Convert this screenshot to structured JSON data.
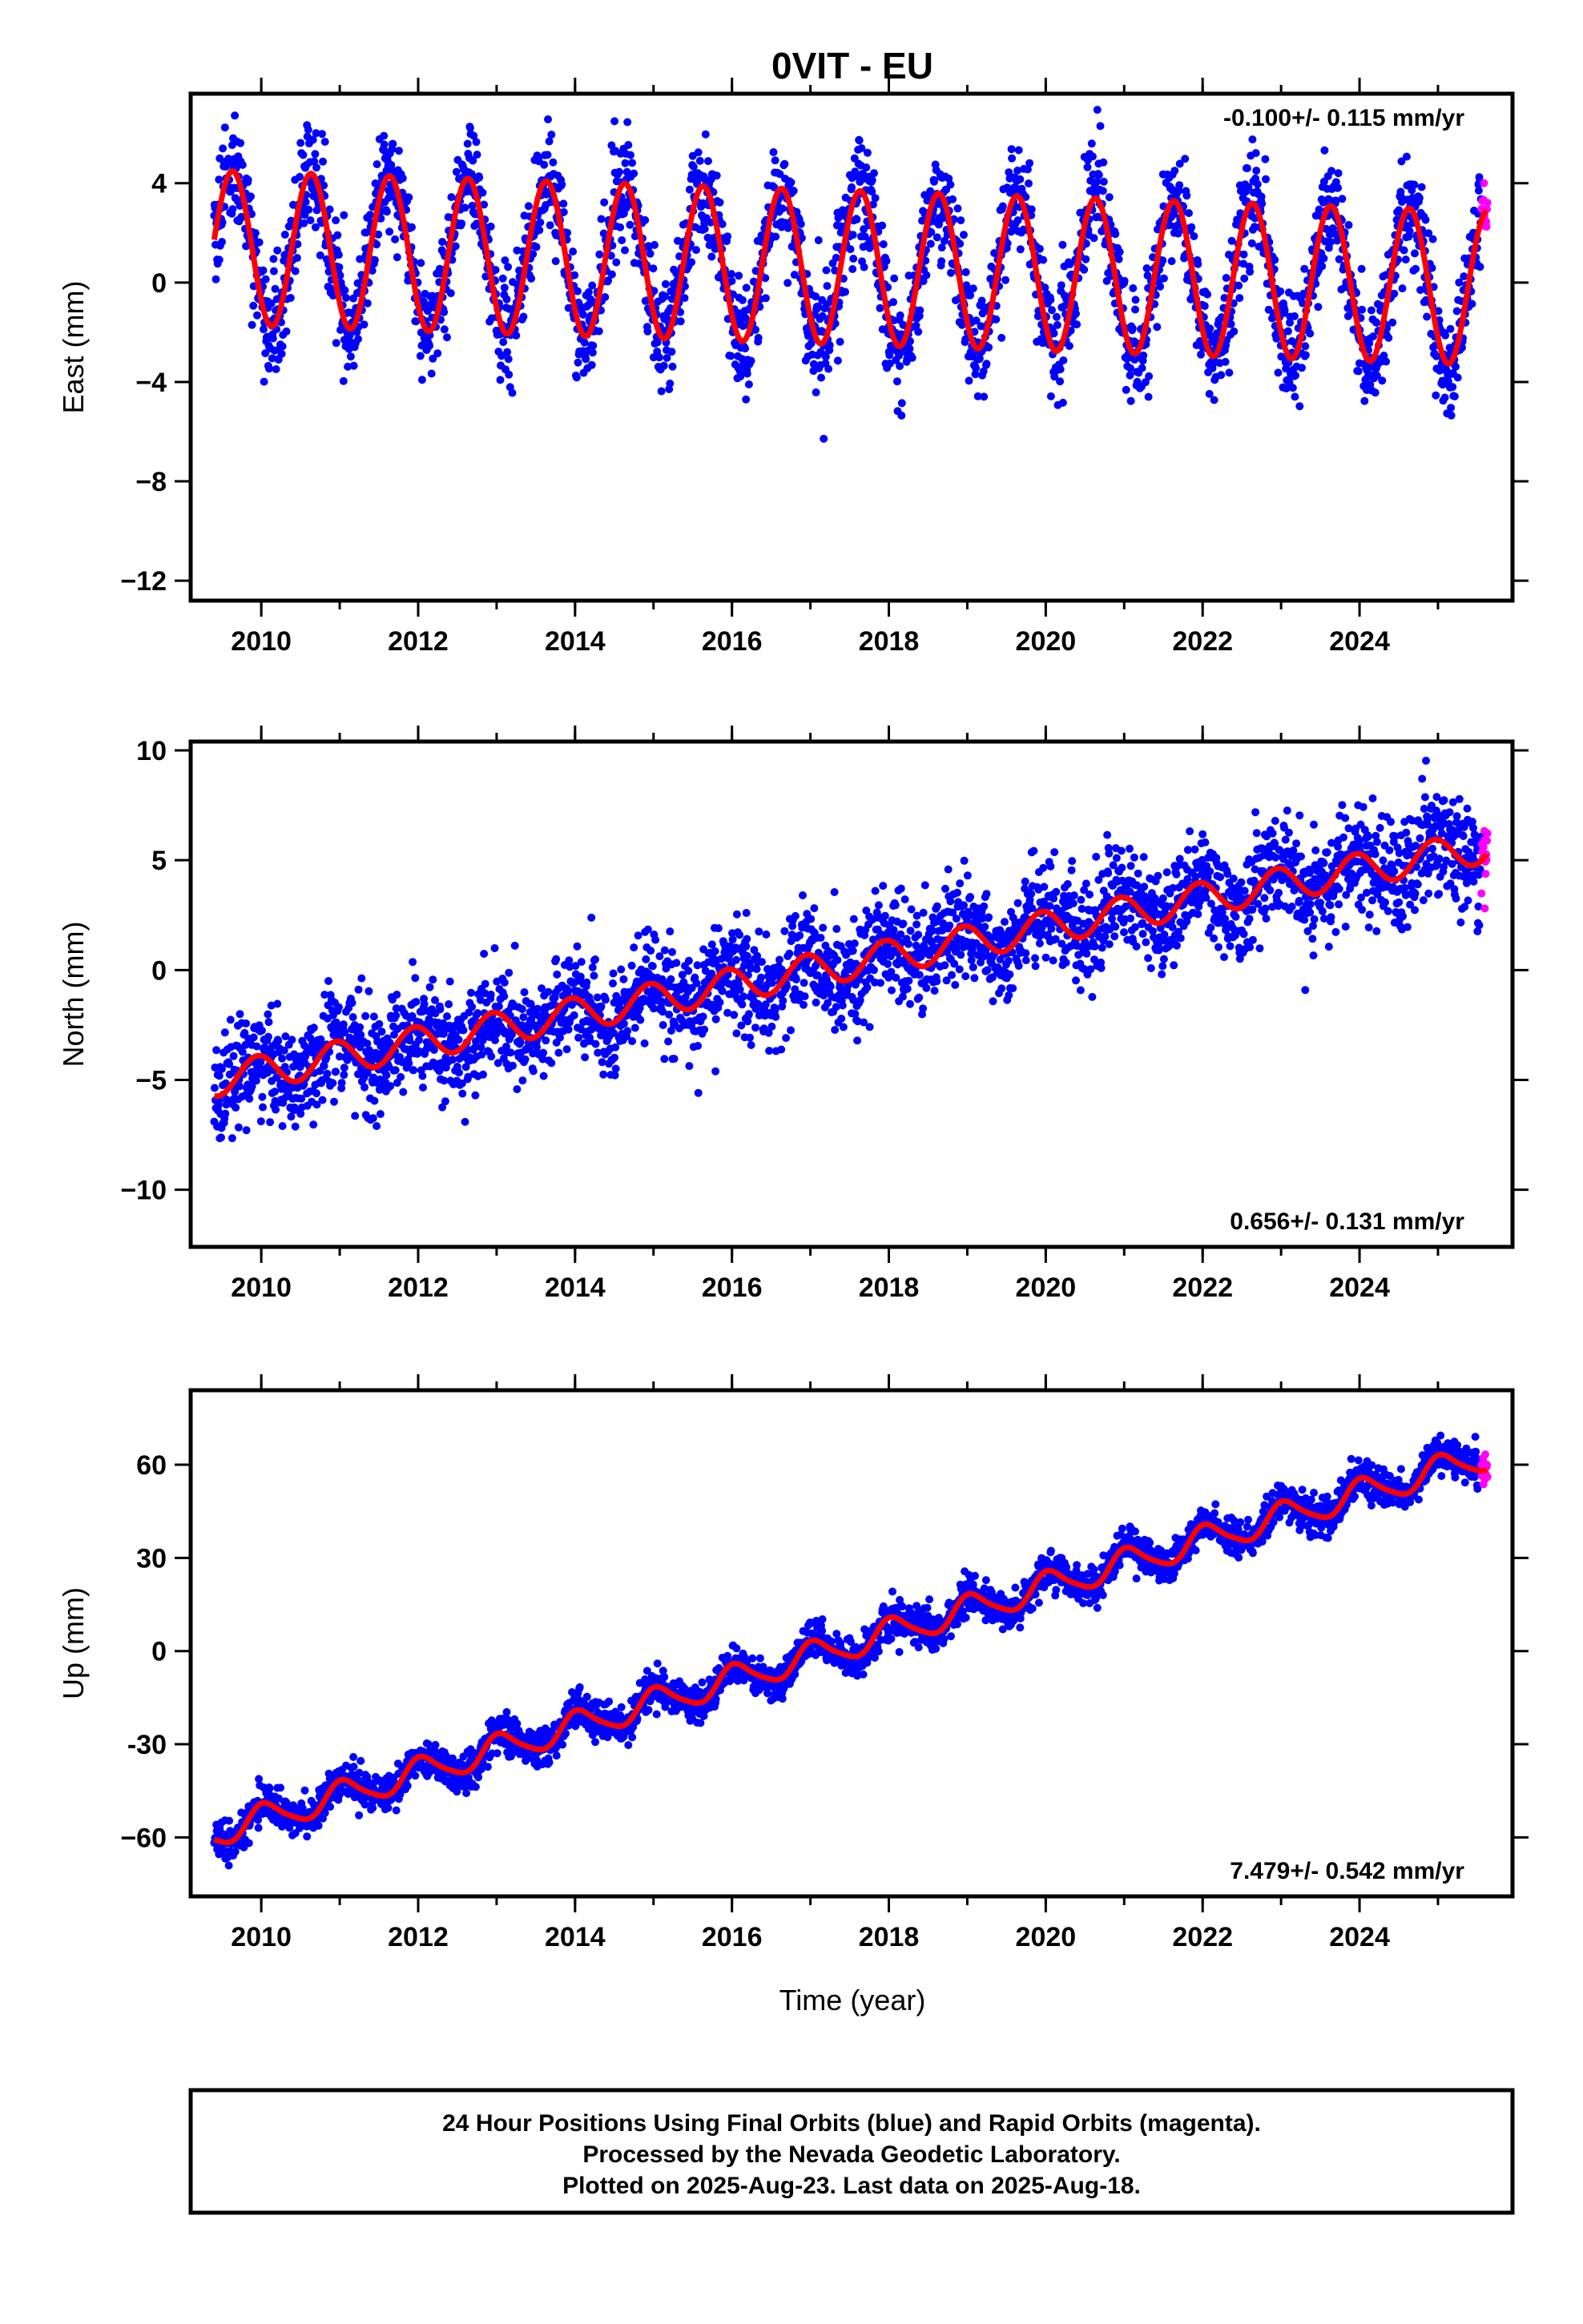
{
  "colors": {
    "final_orbits": "#0000ff",
    "rapid_orbits": "#ff00ff",
    "fit": "#ff0000",
    "frame": "#000000"
  },
  "footer": {
    "lines": [
      "24 Hour Positions Using Final Orbits (blue) and Rapid Orbits (magenta).",
      "Processed by the Nevada Geodetic Laboratory.",
      "Plotted on 2025-Aug-23. Last data on 2025-Aug-18."
    ]
  },
  "chart_data": [
    {
      "type": "scatter",
      "title": "0VIT - EU",
      "ylabel": "East (mm)",
      "xlabel": "",
      "xlim": [
        2009.1,
        2025.95
      ],
      "ylim": [
        -12.8,
        7.6
      ],
      "xticks": [
        2010,
        2012,
        2014,
        2016,
        2018,
        2020,
        2022,
        2024
      ],
      "yticks": [
        4,
        0,
        -4,
        -8,
        -12
      ],
      "ytick_labels": [
        "4",
        "0",
        "−4",
        "−8",
        "−12"
      ],
      "rate_label": "-0.100+/- 0.115 mm/yr",
      "rate_position": "top-right",
      "data_range": [
        2009.4,
        2025.63
      ],
      "rapid_from": 2025.55,
      "model": {
        "offset": 0.6,
        "rate": -0.1,
        "ref_year": 2017.5,
        "annual_amp": 3.1,
        "annual_phase": 2.3,
        "semi_amp": 0.0,
        "semi_phase": 0.0
      },
      "scatter_sd": 1.1,
      "series": [
        {
          "name": "Final Orbits",
          "role": "final"
        },
        {
          "name": "Rapid Orbits",
          "role": "rapid"
        },
        {
          "name": "",
          "role": "fit"
        }
      ]
    },
    {
      "type": "scatter",
      "title": "",
      "ylabel": "North (mm)",
      "xlabel": "",
      "xlim": [
        2009.1,
        2025.95
      ],
      "ylim": [
        -12.6,
        10.4
      ],
      "xticks": [
        2010,
        2012,
        2014,
        2016,
        2018,
        2020,
        2022,
        2024
      ],
      "yticks": [
        10,
        5,
        0,
        -5,
        -10
      ],
      "ytick_labels": [
        "10",
        "5",
        "0",
        "−5",
        "−10"
      ],
      "rate_label": "0.656+/- 0.131 mm/yr",
      "rate_position": "bottom-right",
      "data_range": [
        2009.4,
        2025.63
      ],
      "rapid_from": 2025.55,
      "model": {
        "offset": 0.3,
        "rate": 0.656,
        "ref_year": 2017.5,
        "annual_amp": 0.75,
        "annual_phase": 0.3,
        "semi_amp": 0.0,
        "semi_phase": 0.0
      },
      "scatter_sd": 1.2,
      "series": [
        {
          "name": "Final Orbits",
          "role": "final"
        },
        {
          "name": "Rapid Orbits",
          "role": "rapid"
        },
        {
          "name": "",
          "role": "fit"
        }
      ]
    },
    {
      "type": "scatter",
      "title": "",
      "ylabel": "Up (mm)",
      "xlabel": "Time (year)",
      "xlim": [
        2009.1,
        2025.95
      ],
      "ylim": [
        -79,
        84
      ],
      "xticks": [
        2010,
        2012,
        2014,
        2016,
        2018,
        2020,
        2022,
        2024
      ],
      "yticks": [
        60,
        30,
        0,
        -30,
        -60
      ],
      "ytick_labels": [
        "60",
        "30",
        "0",
        "-30",
        "−60"
      ],
      "rate_label": "7.479+/- 0.542 mm/yr",
      "rate_position": "bottom-right",
      "data_range": [
        2009.4,
        2025.63
      ],
      "rapid_from": 2025.55,
      "model": {
        "offset": 2.0,
        "rate": 7.479,
        "ref_year": 2017.5,
        "annual_amp": 4.5,
        "annual_phase": -0.3,
        "semi_amp": 0.8,
        "semi_phase": 0.5
      },
      "scatter_sd": 3.0,
      "series": [
        {
          "name": "Final Orbits",
          "role": "final"
        },
        {
          "name": "Rapid Orbits",
          "role": "rapid"
        },
        {
          "name": "",
          "role": "fit"
        }
      ]
    }
  ]
}
